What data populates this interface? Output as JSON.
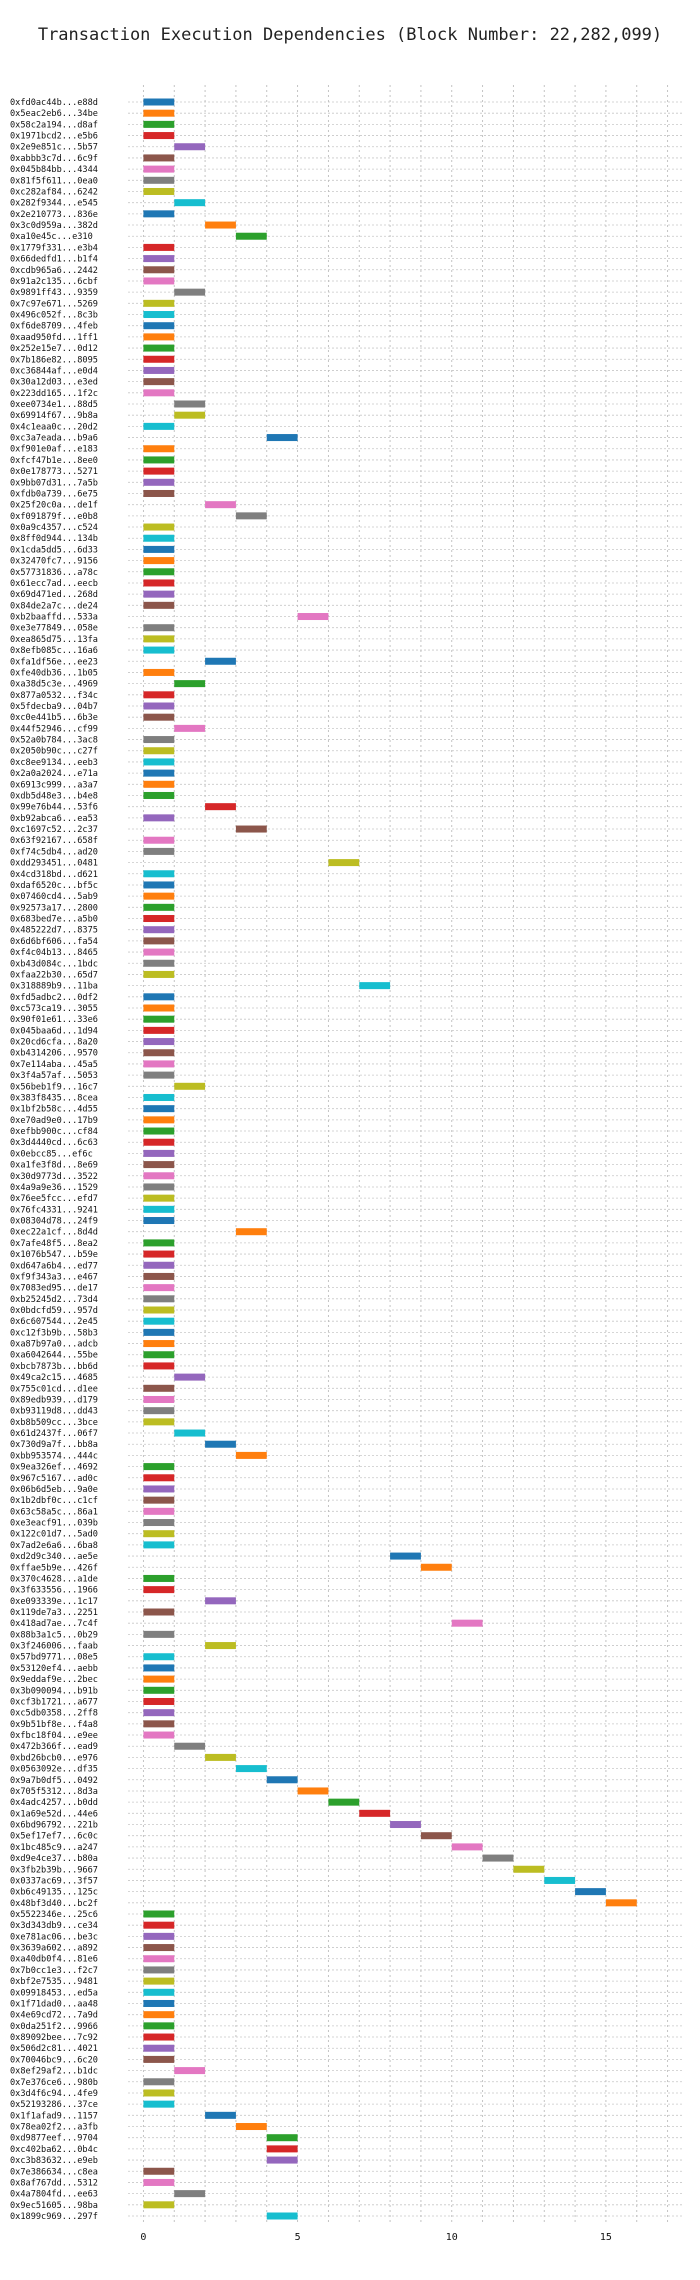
{
  "chart_data": {
    "type": "gantt",
    "title": "Transaction Execution Dependencies (Block Number: 22,282,099)",
    "xlabel": "",
    "ylabel": "",
    "xlim": [
      -0.5,
      17.5
    ],
    "x_ticks": [
      0,
      5,
      10,
      15
    ],
    "grid": true,
    "legend": false,
    "bar_width": 1,
    "colors": [
      "#1f77b4",
      "#ff7f0e",
      "#2ca02c",
      "#d62728",
      "#9467bd",
      "#8c564b",
      "#e377c2",
      "#7f7f7f",
      "#bcbd22",
      "#17becf"
    ],
    "transactions": [
      {
        "label": "0xfd0ac44b...e88d",
        "start": 0
      },
      {
        "label": "0x5eac2eb6...34be",
        "start": 0
      },
      {
        "label": "0x58c2a194...d8af",
        "start": 0
      },
      {
        "label": "0x1971bcd2...e5b6",
        "start": 0
      },
      {
        "label": "0x2e9e851c...5b57",
        "start": 1
      },
      {
        "label": "0xabbb3c7d...6c9f",
        "start": 0
      },
      {
        "label": "0x045b84bb...4344",
        "start": 0
      },
      {
        "label": "0x81f5f611...0ea0",
        "start": 0
      },
      {
        "label": "0xc282af84...6242",
        "start": 0
      },
      {
        "label": "0x282f9344...e545",
        "start": 1
      },
      {
        "label": "0x2e210773...836e",
        "start": 0
      },
      {
        "label": "0x3c0d959a...382d",
        "start": 2
      },
      {
        "label": "0xa10e45c...e310",
        "start": 3
      },
      {
        "label": "0x1779f331...e3b4",
        "start": 0
      },
      {
        "label": "0x66dedfd1...b1f4",
        "start": 0
      },
      {
        "label": "0xcdb965a6...2442",
        "start": 0
      },
      {
        "label": "0x91a2c135...6cbf",
        "start": 0
      },
      {
        "label": "0x9891ff43...9359",
        "start": 1
      },
      {
        "label": "0x7c97e671...5269",
        "start": 0
      },
      {
        "label": "0x496c052f...8c3b",
        "start": 0
      },
      {
        "label": "0xf6de8709...4feb",
        "start": 0
      },
      {
        "label": "0xaad950fd...1ff1",
        "start": 0
      },
      {
        "label": "0x252e15e7...0d12",
        "start": 0
      },
      {
        "label": "0x7b186e82...8095",
        "start": 0
      },
      {
        "label": "0xc36844af...e0d4",
        "start": 0
      },
      {
        "label": "0x30a12d03...e3ed",
        "start": 0
      },
      {
        "label": "0x223dd165...1f2c",
        "start": 0
      },
      {
        "label": "0xee0734e1...88d5",
        "start": 1
      },
      {
        "label": "0x69914f67...9b8a",
        "start": 1
      },
      {
        "label": "0x4c1eaa0c...20d2",
        "start": 0
      },
      {
        "label": "0xc3a7eada...b9a6",
        "start": 4
      },
      {
        "label": "0xf901e0af...e183",
        "start": 0
      },
      {
        "label": "0xfcf47b1e...8ee0",
        "start": 0
      },
      {
        "label": "0x0e178773...5271",
        "start": 0
      },
      {
        "label": "0x9bb07d31...7a5b",
        "start": 0
      },
      {
        "label": "0xfdb0a739...6e75",
        "start": 0
      },
      {
        "label": "0x25f20c0a...de1f",
        "start": 2
      },
      {
        "label": "0xf091879f...e0b8",
        "start": 3
      },
      {
        "label": "0x0a9c4357...c524",
        "start": 0
      },
      {
        "label": "0x8ff0d944...134b",
        "start": 0
      },
      {
        "label": "0x1cda5dd5...6d33",
        "start": 0
      },
      {
        "label": "0x32470fc7...9156",
        "start": 0
      },
      {
        "label": "0x57731836...a78c",
        "start": 0
      },
      {
        "label": "0x61ecc7ad...eecb",
        "start": 0
      },
      {
        "label": "0x69d471ed...268d",
        "start": 0
      },
      {
        "label": "0x84de2a7c...de24",
        "start": 0
      },
      {
        "label": "0xb2baaffd...533a",
        "start": 5
      },
      {
        "label": "0xe3e77849...058e",
        "start": 0
      },
      {
        "label": "0xea865d75...13fa",
        "start": 0
      },
      {
        "label": "0x8efb085c...16a6",
        "start": 0
      },
      {
        "label": "0xfa1df56e...ee23",
        "start": 2
      },
      {
        "label": "0xfe40db36...1b05",
        "start": 0
      },
      {
        "label": "0xa38d5c3e...4969",
        "start": 1
      },
      {
        "label": "0x877a0532...f34c",
        "start": 0
      },
      {
        "label": "0x5fdecba9...04b7",
        "start": 0
      },
      {
        "label": "0xc0e441b5...6b3e",
        "start": 0
      },
      {
        "label": "0x44f52946...cf99",
        "start": 1
      },
      {
        "label": "0x52a0b784...3ac8",
        "start": 0
      },
      {
        "label": "0x2050b90c...c27f",
        "start": 0
      },
      {
        "label": "0xc8ee9134...eeb3",
        "start": 0
      },
      {
        "label": "0x2a0a2024...e71a",
        "start": 0
      },
      {
        "label": "0x6913c999...a3a7",
        "start": 0
      },
      {
        "label": "0xdb5d48e3...b4e8",
        "start": 0
      },
      {
        "label": "0x99e76b44...53f6",
        "start": 2
      },
      {
        "label": "0xb92abca6...ea53",
        "start": 0
      },
      {
        "label": "0xc1697c52...2c37",
        "start": 3
      },
      {
        "label": "0x63f92167...658f",
        "start": 0
      },
      {
        "label": "0xf74c5db4...ad20",
        "start": 0
      },
      {
        "label": "0xdd293451...0481",
        "start": 6
      },
      {
        "label": "0x4cd318bd...d621",
        "start": 0
      },
      {
        "label": "0xdaf6520c...bf5c",
        "start": 0
      },
      {
        "label": "0x07460cd4...5ab9",
        "start": 0
      },
      {
        "label": "0x92573a17...2800",
        "start": 0
      },
      {
        "label": "0x683bed7e...a5b0",
        "start": 0
      },
      {
        "label": "0x485222d7...8375",
        "start": 0
      },
      {
        "label": "0x6d6bf606...fa54",
        "start": 0
      },
      {
        "label": "0xf4c04b13...8465",
        "start": 0
      },
      {
        "label": "0xb43d084c...1bdc",
        "start": 0
      },
      {
        "label": "0xfaa22b30...65d7",
        "start": 0
      },
      {
        "label": "0x318889b9...11ba",
        "start": 7
      },
      {
        "label": "0xfd5adbc2...0df2",
        "start": 0
      },
      {
        "label": "0xc573ca19...3055",
        "start": 0
      },
      {
        "label": "0x90f01e61...33e6",
        "start": 0
      },
      {
        "label": "0x045baa6d...1d94",
        "start": 0
      },
      {
        "label": "0x20cd6cfa...8a20",
        "start": 0
      },
      {
        "label": "0xb4314206...9570",
        "start": 0
      },
      {
        "label": "0x7e114aba...45a5",
        "start": 0
      },
      {
        "label": "0x3f4a57af...5053",
        "start": 0
      },
      {
        "label": "0x56beb1f9...16c7",
        "start": 1
      },
      {
        "label": "0x383f8435...8cea",
        "start": 0
      },
      {
        "label": "0x1bf2b58c...4d55",
        "start": 0
      },
      {
        "label": "0xe70ad9e0...17b9",
        "start": 0
      },
      {
        "label": "0xefbb900c...cf84",
        "start": 0
      },
      {
        "label": "0x3d4440cd...6c63",
        "start": 0
      },
      {
        "label": "0x0ebcc85...ef6c",
        "start": 0
      },
      {
        "label": "0xa1fe3f8d...8e69",
        "start": 0
      },
      {
        "label": "0x30d9773d...3522",
        "start": 0
      },
      {
        "label": "0x4a9a9e36...1529",
        "start": 0
      },
      {
        "label": "0x76ee5fcc...efd7",
        "start": 0
      },
      {
        "label": "0x76fc4331...9241",
        "start": 0
      },
      {
        "label": "0x08304d78...24f9",
        "start": 0
      },
      {
        "label": "0xec22a1cf...8d4d",
        "start": 3
      },
      {
        "label": "0x7afe48f5...8ea2",
        "start": 0
      },
      {
        "label": "0x1076b547...b59e",
        "start": 0
      },
      {
        "label": "0xd647a6b4...ed77",
        "start": 0
      },
      {
        "label": "0xf9f343a3...e467",
        "start": 0
      },
      {
        "label": "0x7083ed95...de17",
        "start": 0
      },
      {
        "label": "0xb25245d2...73d4",
        "start": 0
      },
      {
        "label": "0x0bdcfd59...957d",
        "start": 0
      },
      {
        "label": "0x6c607544...2e45",
        "start": 0
      },
      {
        "label": "0xc12f3b9b...58b3",
        "start": 0
      },
      {
        "label": "0xa87b97a0...adcb",
        "start": 0
      },
      {
        "label": "0xa6042644...55be",
        "start": 0
      },
      {
        "label": "0xbcb7873b...bb6d",
        "start": 0
      },
      {
        "label": "0x49ca2c15...4685",
        "start": 1
      },
      {
        "label": "0x755c01cd...d1ee",
        "start": 0
      },
      {
        "label": "0x89edb939...d179",
        "start": 0
      },
      {
        "label": "0xb93119d8...dd43",
        "start": 0
      },
      {
        "label": "0xb8b509cc...3bce",
        "start": 0
      },
      {
        "label": "0x61d2437f...06f7",
        "start": 1
      },
      {
        "label": "0x730d9a7f...bb8a",
        "start": 2
      },
      {
        "label": "0xbb953574...444c",
        "start": 3
      },
      {
        "label": "0x9ea326ef...4692",
        "start": 0
      },
      {
        "label": "0x967c5167...ad0c",
        "start": 0
      },
      {
        "label": "0x06b6d5eb...9a0e",
        "start": 0
      },
      {
        "label": "0x1b2dbf0c...c1cf",
        "start": 0
      },
      {
        "label": "0x63c58a5c...86a1",
        "start": 0
      },
      {
        "label": "0xe3eacf91...039b",
        "start": 0
      },
      {
        "label": "0x122c01d7...5ad0",
        "start": 0
      },
      {
        "label": "0x7ad2e6a6...6ba8",
        "start": 0
      },
      {
        "label": "0xd2d9c340...ae5e",
        "start": 8
      },
      {
        "label": "0xffae5b9e...426f",
        "start": 9
      },
      {
        "label": "0x370c4628...a1de",
        "start": 0
      },
      {
        "label": "0x3f633556...1966",
        "start": 0
      },
      {
        "label": "0xe093339e...1c17",
        "start": 2
      },
      {
        "label": "0x119de7a3...2251",
        "start": 0
      },
      {
        "label": "0x418ad7ae...7c4f",
        "start": 10
      },
      {
        "label": "0x88b3a1c5...0b29",
        "start": 0
      },
      {
        "label": "0x3f246006...faab",
        "start": 2
      },
      {
        "label": "0x57bd9771...08e5",
        "start": 0
      },
      {
        "label": "0x53120ef4...aebb",
        "start": 0
      },
      {
        "label": "0x9eddaf9e...2bec",
        "start": 0
      },
      {
        "label": "0x3b090094...b91b",
        "start": 0
      },
      {
        "label": "0xcf3b1721...a677",
        "start": 0
      },
      {
        "label": "0xc5db0358...2ff8",
        "start": 0
      },
      {
        "label": "0x9b51bf8e...f4a8",
        "start": 0
      },
      {
        "label": "0xfbc18f04...e9ee",
        "start": 0
      },
      {
        "label": "0x472b366f...ead9",
        "start": 1
      },
      {
        "label": "0xbd26bcb0...e976",
        "start": 2
      },
      {
        "label": "0x0563092e...df35",
        "start": 3
      },
      {
        "label": "0x9a7b0df5...0492",
        "start": 4
      },
      {
        "label": "0x705f5312...8d3a",
        "start": 5
      },
      {
        "label": "0x4adc4257...b0dd",
        "start": 6
      },
      {
        "label": "0x1a69e52d...44e6",
        "start": 7
      },
      {
        "label": "0x6bd96792...221b",
        "start": 8
      },
      {
        "label": "0x5ef17ef7...6c0c",
        "start": 9
      },
      {
        "label": "0x1bc485c9...a247",
        "start": 10
      },
      {
        "label": "0xd9e4ce37...b80a",
        "start": 11
      },
      {
        "label": "0x3fb2b39b...9667",
        "start": 12
      },
      {
        "label": "0x0337ac69...3f57",
        "start": 13
      },
      {
        "label": "0xb6c49135...125c",
        "start": 14
      },
      {
        "label": "0x48bf3d40...bc2f",
        "start": 15
      },
      {
        "label": "0x5522346e...25c6",
        "start": 0
      },
      {
        "label": "0x3d343db9...ce34",
        "start": 0
      },
      {
        "label": "0xe781ac06...be3c",
        "start": 0
      },
      {
        "label": "0x3639a602...a892",
        "start": 0
      },
      {
        "label": "0xa40db0f4...81e6",
        "start": 0
      },
      {
        "label": "0x7b0cc1e3...f2c7",
        "start": 0
      },
      {
        "label": "0xbf2e7535...9481",
        "start": 0
      },
      {
        "label": "0x09918453...ed5a",
        "start": 0
      },
      {
        "label": "0x1f71dad0...aa48",
        "start": 0
      },
      {
        "label": "0x4e69cd72...7a9d",
        "start": 0
      },
      {
        "label": "0x0da251f2...9966",
        "start": 0
      },
      {
        "label": "0x89092bee...7c92",
        "start": 0
      },
      {
        "label": "0x506d2c81...4021",
        "start": 0
      },
      {
        "label": "0x70046bc9...6c20",
        "start": 0
      },
      {
        "label": "0x8ef29af2...b1dc",
        "start": 1
      },
      {
        "label": "0x7e376ce6...980b",
        "start": 0
      },
      {
        "label": "0x3d4f6c94...4fe9",
        "start": 0
      },
      {
        "label": "0x52193286...37ce",
        "start": 0
      },
      {
        "label": "0x1f1afad9...1157",
        "start": 2
      },
      {
        "label": "0x78ea02f2...a3fb",
        "start": 3
      },
      {
        "label": "0xd9877eef...9704",
        "start": 4
      },
      {
        "label": "0xc402ba62...0b4c",
        "start": 4
      },
      {
        "label": "0xc3b83632...e9eb",
        "start": 4
      },
      {
        "label": "0x7e386634...c8ea",
        "start": 0
      },
      {
        "label": "0x8af767dd...5312",
        "start": 0
      },
      {
        "label": "0x4a7804fd...ee63",
        "start": 1
      },
      {
        "label": "0x9ec51605...98ba",
        "start": 0
      },
      {
        "label": "0x1899c969...297f",
        "start": 4
      }
    ]
  }
}
